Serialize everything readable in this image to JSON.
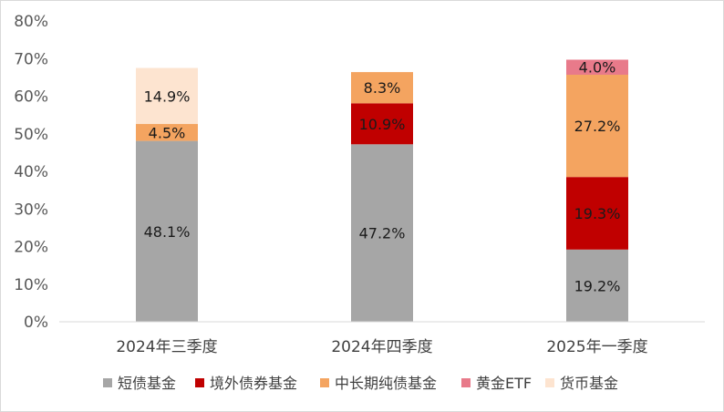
{
  "chart_data": {
    "type": "bar",
    "stacked": true,
    "categories": [
      "2024年三季度",
      "2024年四季度",
      "2025年一季度"
    ],
    "series": [
      {
        "name": "短债基金",
        "color": "#a6a6a6",
        "values": [
          48.1,
          47.2,
          19.2
        ],
        "labels": [
          "48.1%",
          "47.2%",
          "19.2%"
        ]
      },
      {
        "name": "境外债券基金",
        "color": "#c00000",
        "values": [
          0,
          10.9,
          19.3
        ],
        "labels": [
          "",
          "10.9%",
          "19.3%"
        ]
      },
      {
        "name": "中长期纯债基金",
        "color": "#f4a460",
        "values": [
          4.5,
          8.3,
          27.2
        ],
        "labels": [
          "4.5%",
          "8.3%",
          "27.2%"
        ]
      },
      {
        "name": "黄金ETF",
        "color": "#e87a8a",
        "values": [
          0,
          0,
          4.0
        ],
        "labels": [
          "",
          "",
          "4.0%"
        ]
      },
      {
        "name": "货币基金",
        "color": "#fde4d0",
        "values": [
          14.9,
          0,
          0
        ],
        "labels": [
          "14.9%",
          "",
          ""
        ]
      }
    ],
    "ylim": [
      0,
      80
    ],
    "yticks": [
      "0%",
      "10%",
      "20%",
      "30%",
      "40%",
      "50%",
      "60%",
      "70%",
      "80%"
    ],
    "grid": false,
    "legend_position": "bottom"
  }
}
